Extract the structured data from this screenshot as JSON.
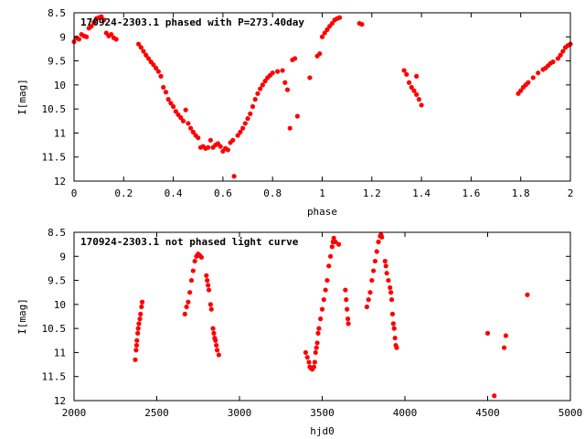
{
  "colors": {
    "points": "#ff0000",
    "axes": "#000000",
    "background": "#ffffff"
  },
  "chart_data": [
    {
      "type": "scatter",
      "title": "170924-2303.1 phased with P=273.40day",
      "xlabel": "phase",
      "ylabel": "I[mag]",
      "xlim": [
        0,
        2
      ],
      "ylim": [
        12,
        8.5
      ],
      "y_inverted": true,
      "grid": false,
      "xticks": [
        "0",
        "0.2",
        "0.4",
        "0.6",
        "0.8",
        "1",
        "1.2",
        "1.4",
        "1.6",
        "1.8",
        "2"
      ],
      "xtick_values": [
        0,
        0.2,
        0.4,
        0.6,
        0.8,
        1.0,
        1.2,
        1.4,
        1.6,
        1.8,
        2.0
      ],
      "yticks": [
        "8.5",
        "9",
        "9.5",
        "10",
        "10.5",
        "11",
        "11.5",
        "12"
      ],
      "ytick_values": [
        8.5,
        9,
        9.5,
        10,
        10.5,
        11,
        11.5,
        12
      ],
      "series": [
        {
          "marker": "filled-circle",
          "points": [
            [
              0.0,
              9.1
            ],
            [
              0.01,
              9.02
            ],
            [
              0.02,
              9.05
            ],
            [
              0.03,
              8.95
            ],
            [
              0.04,
              8.98
            ],
            [
              0.05,
              9.0
            ],
            [
              0.06,
              8.82
            ],
            [
              0.07,
              8.78
            ],
            [
              0.08,
              8.7
            ],
            [
              0.09,
              8.62
            ],
            [
              0.1,
              8.6
            ],
            [
              0.11,
              8.58
            ],
            [
              0.12,
              8.65
            ],
            [
              0.13,
              8.92
            ],
            [
              0.14,
              8.98
            ],
            [
              0.15,
              8.95
            ],
            [
              0.16,
              9.02
            ],
            [
              0.17,
              9.05
            ],
            [
              0.26,
              9.15
            ],
            [
              0.27,
              9.22
            ],
            [
              0.28,
              9.3
            ],
            [
              0.29,
              9.38
            ],
            [
              0.3,
              9.45
            ],
            [
              0.31,
              9.52
            ],
            [
              0.32,
              9.58
            ],
            [
              0.33,
              9.65
            ],
            [
              0.34,
              9.72
            ],
            [
              0.35,
              9.82
            ],
            [
              0.36,
              10.05
            ],
            [
              0.37,
              10.15
            ],
            [
              0.38,
              10.3
            ],
            [
              0.39,
              10.38
            ],
            [
              0.4,
              10.45
            ],
            [
              0.41,
              10.55
            ],
            [
              0.42,
              10.62
            ],
            [
              0.43,
              10.68
            ],
            [
              0.44,
              10.75
            ],
            [
              0.45,
              10.52
            ],
            [
              0.46,
              10.8
            ],
            [
              0.47,
              10.9
            ],
            [
              0.48,
              10.98
            ],
            [
              0.49,
              11.05
            ],
            [
              0.5,
              11.1
            ],
            [
              0.51,
              11.3
            ],
            [
              0.52,
              11.28
            ],
            [
              0.53,
              11.32
            ],
            [
              0.54,
              11.3
            ],
            [
              0.55,
              11.15
            ],
            [
              0.56,
              11.3
            ],
            [
              0.57,
              11.25
            ],
            [
              0.58,
              11.22
            ],
            [
              0.59,
              11.28
            ],
            [
              0.6,
              11.38
            ],
            [
              0.61,
              11.32
            ],
            [
              0.62,
              11.35
            ],
            [
              0.63,
              11.2
            ],
            [
              0.64,
              11.15
            ],
            [
              0.645,
              11.9
            ],
            [
              0.66,
              11.05
            ],
            [
              0.67,
              10.98
            ],
            [
              0.68,
              10.9
            ],
            [
              0.69,
              10.8
            ],
            [
              0.7,
              10.7
            ],
            [
              0.71,
              10.6
            ],
            [
              0.72,
              10.45
            ],
            [
              0.73,
              10.3
            ],
            [
              0.74,
              10.18
            ],
            [
              0.75,
              10.08
            ],
            [
              0.76,
              10.0
            ],
            [
              0.77,
              9.92
            ],
            [
              0.78,
              9.85
            ],
            [
              0.79,
              9.8
            ],
            [
              0.8,
              9.75
            ],
            [
              0.82,
              9.72
            ],
            [
              0.84,
              9.7
            ],
            [
              0.85,
              9.95
            ],
            [
              0.86,
              10.1
            ],
            [
              0.87,
              10.9
            ],
            [
              0.88,
              9.48
            ],
            [
              0.89,
              9.45
            ],
            [
              0.9,
              10.65
            ],
            [
              0.95,
              9.85
            ],
            [
              0.98,
              9.4
            ],
            [
              0.99,
              9.35
            ],
            [
              1.0,
              9.0
            ],
            [
              1.01,
              8.92
            ],
            [
              1.02,
              8.85
            ],
            [
              1.03,
              8.78
            ],
            [
              1.04,
              8.72
            ],
            [
              1.05,
              8.65
            ],
            [
              1.06,
              8.62
            ],
            [
              1.07,
              8.6
            ],
            [
              1.15,
              8.72
            ],
            [
              1.16,
              8.74
            ],
            [
              1.33,
              9.7
            ],
            [
              1.34,
              9.78
            ],
            [
              1.35,
              9.95
            ],
            [
              1.36,
              10.05
            ],
            [
              1.37,
              10.12
            ],
            [
              1.38,
              10.2
            ],
            [
              1.39,
              10.3
            ],
            [
              1.4,
              10.42
            ],
            [
              1.38,
              9.82
            ],
            [
              1.79,
              10.18
            ],
            [
              1.8,
              10.12
            ],
            [
              1.81,
              10.05
            ],
            [
              1.82,
              10.0
            ],
            [
              1.83,
              9.95
            ],
            [
              1.85,
              9.85
            ],
            [
              1.87,
              9.75
            ],
            [
              1.89,
              9.68
            ],
            [
              1.9,
              9.65
            ],
            [
              1.91,
              9.6
            ],
            [
              1.92,
              9.55
            ],
            [
              1.93,
              9.52
            ],
            [
              1.95,
              9.45
            ],
            [
              1.96,
              9.38
            ],
            [
              1.97,
              9.3
            ],
            [
              1.98,
              9.22
            ],
            [
              1.99,
              9.18
            ],
            [
              2.0,
              9.15
            ]
          ]
        }
      ]
    },
    {
      "type": "scatter",
      "title": "170924-2303.1 not phased light curve",
      "xlabel": "hjd0",
      "ylabel": "I[mag]",
      "xlim": [
        2000,
        5000
      ],
      "ylim": [
        12,
        8.5
      ],
      "y_inverted": true,
      "grid": false,
      "xticks": [
        "2000",
        "2500",
        "3000",
        "3500",
        "4000",
        "4500",
        "5000"
      ],
      "xtick_values": [
        2000,
        2500,
        3000,
        3500,
        4000,
        4500,
        5000
      ],
      "yticks": [
        "8.5",
        "9",
        "9.5",
        "10",
        "10.5",
        "11",
        "11.5",
        "12"
      ],
      "ytick_values": [
        8.5,
        9,
        9.5,
        10,
        10.5,
        11,
        11.5,
        12
      ],
      "series": [
        {
          "marker": "filled-circle",
          "points": [
            [
              2370,
              11.15
            ],
            [
              2375,
              10.95
            ],
            [
              2378,
              10.85
            ],
            [
              2380,
              10.75
            ],
            [
              2385,
              10.6
            ],
            [
              2388,
              10.5
            ],
            [
              2392,
              10.4
            ],
            [
              2398,
              10.3
            ],
            [
              2402,
              10.2
            ],
            [
              2408,
              10.05
            ],
            [
              2412,
              9.95
            ],
            [
              2670,
              10.2
            ],
            [
              2680,
              10.05
            ],
            [
              2690,
              9.95
            ],
            [
              2700,
              9.75
            ],
            [
              2710,
              9.5
            ],
            [
              2720,
              9.3
            ],
            [
              2730,
              9.1
            ],
            [
              2740,
              9.0
            ],
            [
              2750,
              8.95
            ],
            [
              2760,
              8.98
            ],
            [
              2770,
              9.02
            ],
            [
              2800,
              9.4
            ],
            [
              2805,
              9.5
            ],
            [
              2810,
              9.6
            ],
            [
              2815,
              9.7
            ],
            [
              2825,
              10.0
            ],
            [
              2830,
              10.1
            ],
            [
              2840,
              10.5
            ],
            [
              2845,
              10.6
            ],
            [
              2850,
              10.7
            ],
            [
              2855,
              10.75
            ],
            [
              2860,
              10.85
            ],
            [
              2865,
              10.95
            ],
            [
              2875,
              11.05
            ],
            [
              3400,
              11.0
            ],
            [
              3410,
              11.1
            ],
            [
              3420,
              11.2
            ],
            [
              3425,
              11.3
            ],
            [
              3430,
              11.32
            ],
            [
              3440,
              11.35
            ],
            [
              3450,
              11.3
            ],
            [
              3455,
              11.2
            ],
            [
              3460,
              11.0
            ],
            [
              3465,
              10.9
            ],
            [
              3470,
              10.8
            ],
            [
              3475,
              10.6
            ],
            [
              3480,
              10.5
            ],
            [
              3490,
              10.3
            ],
            [
              3500,
              10.1
            ],
            [
              3510,
              9.9
            ],
            [
              3520,
              9.7
            ],
            [
              3530,
              9.5
            ],
            [
              3540,
              9.2
            ],
            [
              3550,
              9.0
            ],
            [
              3560,
              8.8
            ],
            [
              3565,
              8.7
            ],
            [
              3570,
              8.62
            ],
            [
              3580,
              8.7
            ],
            [
              3600,
              8.75
            ],
            [
              3640,
              9.7
            ],
            [
              3645,
              9.9
            ],
            [
              3650,
              10.1
            ],
            [
              3655,
              10.3
            ],
            [
              3658,
              10.4
            ],
            [
              3770,
              10.05
            ],
            [
              3780,
              9.9
            ],
            [
              3790,
              9.75
            ],
            [
              3800,
              9.5
            ],
            [
              3810,
              9.3
            ],
            [
              3820,
              9.1
            ],
            [
              3830,
              8.9
            ],
            [
              3840,
              8.7
            ],
            [
              3850,
              8.58
            ],
            [
              3855,
              8.55
            ],
            [
              3860,
              8.6
            ],
            [
              3880,
              9.1
            ],
            [
              3885,
              9.2
            ],
            [
              3890,
              9.35
            ],
            [
              3900,
              9.5
            ],
            [
              3910,
              9.65
            ],
            [
              3915,
              9.75
            ],
            [
              3920,
              9.9
            ],
            [
              3925,
              10.2
            ],
            [
              3930,
              10.4
            ],
            [
              3935,
              10.5
            ],
            [
              3940,
              10.7
            ],
            [
              3945,
              10.85
            ],
            [
              3950,
              10.9
            ],
            [
              4500,
              10.6
            ],
            [
              4540,
              11.9
            ],
            [
              4600,
              10.9
            ],
            [
              4610,
              10.65
            ],
            [
              4740,
              9.8
            ]
          ]
        }
      ]
    }
  ]
}
